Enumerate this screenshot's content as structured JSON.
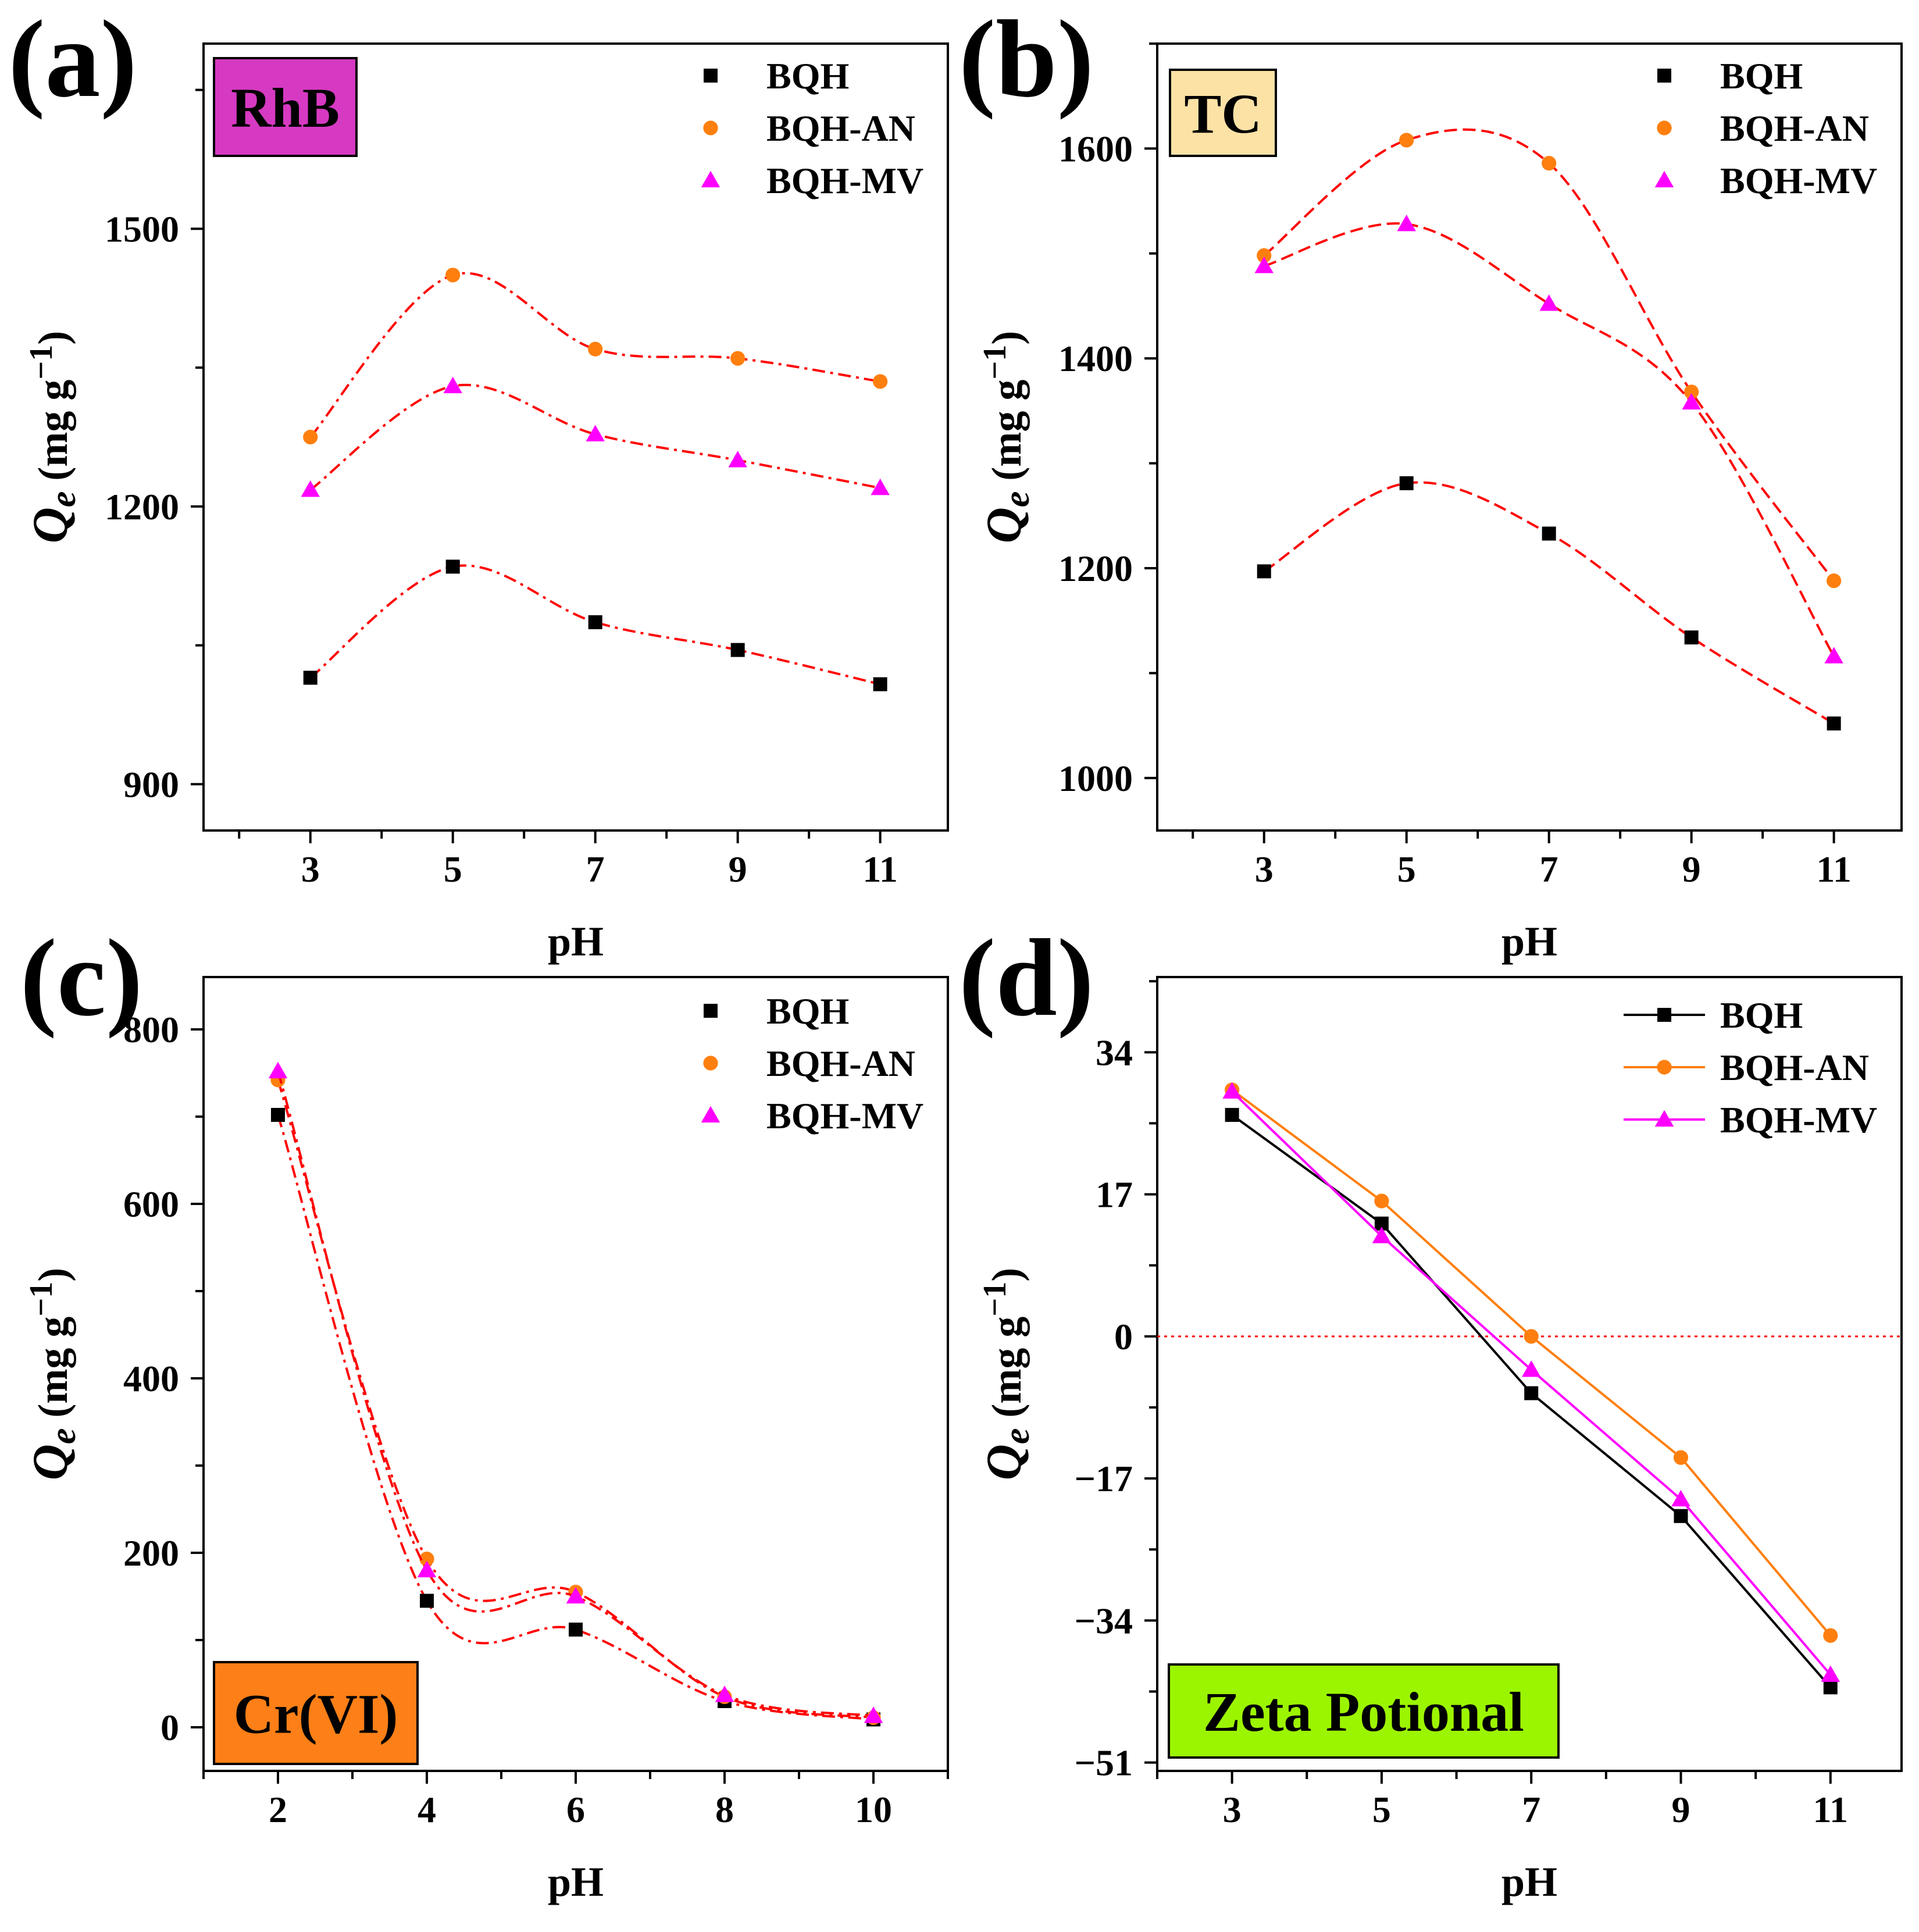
{
  "colors": {
    "bqh": "#000000",
    "bqh_an": "#ff7f0e",
    "bqh_mv": "#ff00ff",
    "fit_line": "#ff0000",
    "zero_line": "#ff0000",
    "rhb_box": "#d63ac2",
    "tc_box": "#fde2a6",
    "cr_box": "#fd7f17",
    "zeta_box": "#9cf500"
  },
  "chart_data": [
    {
      "id": "a",
      "type": "scatter",
      "panel_label": "(a)",
      "analyte_label": "RhB",
      "xlabel": "pH",
      "ylabel": "Qe (mg g−1)",
      "ylabel_main": "Q",
      "ylabel_sub": "e",
      "ylabel_unit": " (mg g",
      "ylabel_sup": "−1",
      "ylabel_close": ")",
      "x": [
        3,
        5,
        7,
        9,
        11
      ],
      "xticks": [
        "3",
        "5",
        "7",
        "9",
        "11"
      ],
      "yticks": [
        "900",
        "1200",
        "1500"
      ],
      "xlim": [
        1.5,
        11.95
      ],
      "ylim": [
        850,
        1700
      ],
      "legend": [
        "BQH",
        "BQH-AN",
        "BQH-MV"
      ],
      "legend_position": "top-right",
      "fit": "smooth dash-dot curve through points",
      "series": [
        {
          "name": "BQH",
          "marker": "square",
          "values": [
            1015,
            1135,
            1075,
            1045,
            1008
          ]
        },
        {
          "name": "BQH-AN",
          "marker": "circle",
          "values": [
            1275,
            1450,
            1370,
            1360,
            1335
          ]
        },
        {
          "name": "BQH-MV",
          "marker": "triangle",
          "values": [
            1218,
            1330,
            1278,
            1250,
            1220
          ]
        }
      ]
    },
    {
      "id": "b",
      "type": "scatter",
      "panel_label": "(b)",
      "analyte_label": "TC",
      "xlabel": "pH",
      "ylabel": "Qe (mg g−1)",
      "ylabel_main": "Q",
      "ylabel_sub": "e",
      "ylabel_unit": " (mg g",
      "ylabel_sup": "−1",
      "ylabel_close": ")",
      "x": [
        3,
        5,
        7,
        9,
        11
      ],
      "xticks": [
        "3",
        "5",
        "7",
        "9",
        "11"
      ],
      "yticks": [
        "1000",
        "1200",
        "1400",
        "1600"
      ],
      "xlim": [
        1.5,
        11.95
      ],
      "ylim": [
        950,
        1700
      ],
      "legend": [
        "BQH",
        "BQH-AN",
        "BQH-MV"
      ],
      "legend_position": "top-right",
      "fit": "smooth dash curve through points",
      "series": [
        {
          "name": "BQH",
          "marker": "square",
          "values": [
            1197,
            1281,
            1233,
            1134,
            1052
          ]
        },
        {
          "name": "BQH-AN",
          "marker": "circle",
          "values": [
            1498,
            1608,
            1586,
            1368,
            1188
          ]
        },
        {
          "name": "BQH-MV",
          "marker": "triangle",
          "values": [
            1488,
            1528,
            1452,
            1358,
            1116
          ]
        }
      ]
    },
    {
      "id": "c",
      "type": "scatter",
      "panel_label": "(c)",
      "analyte_label": "Cr(VI)",
      "xlabel": "pH",
      "ylabel": "Qe (mg g−1)",
      "ylabel_main": "Q",
      "ylabel_sub": "e",
      "ylabel_unit": " (mg g",
      "ylabel_sup": "−1",
      "ylabel_close": ")",
      "x": [
        2,
        4,
        6,
        8,
        10
      ],
      "xticks": [
        "2",
        "4",
        "6",
        "8",
        "10"
      ],
      "yticks": [
        "0",
        "200",
        "400",
        "600",
        "800"
      ],
      "xlim": [
        1,
        11
      ],
      "ylim": [
        -50,
        860
      ],
      "legend": [
        "BQH",
        "BQH-AN",
        "BQH-MV"
      ],
      "legend_position": "top-right",
      "fit": "smooth dash-dot curve through points",
      "series": [
        {
          "name": "BQH",
          "marker": "square",
          "values": [
            702,
            145,
            112,
            30,
            9
          ]
        },
        {
          "name": "BQH-AN",
          "marker": "circle",
          "values": [
            742,
            193,
            155,
            35,
            11
          ]
        },
        {
          "name": "BQH-MV",
          "marker": "triangle",
          "values": [
            752,
            180,
            150,
            37,
            13
          ]
        }
      ]
    },
    {
      "id": "d",
      "type": "line",
      "panel_label": "(d)",
      "analyte_label": "Zeta Potional",
      "xlabel": "pH",
      "ylabel": "Qe (mg g−1)",
      "ylabel_main": "Q",
      "ylabel_sub": "e",
      "ylabel_unit": " (mg g",
      "ylabel_sup": "−1",
      "ylabel_close": ")",
      "x": [
        3,
        5,
        7,
        9,
        11
      ],
      "xticks": [
        "3",
        "5",
        "7",
        "9",
        "11"
      ],
      "yticks": [
        "−51",
        "−34",
        "−17",
        "0",
        "17",
        "34"
      ],
      "yticks_values": [
        -51,
        -34,
        -17,
        0,
        17,
        34
      ],
      "xlim": [
        2,
        11.95
      ],
      "ylim": [
        -52,
        43
      ],
      "reference_line_y": 0,
      "legend": [
        "BQH",
        "BQH-AN",
        "BQH-MV"
      ],
      "legend_position": "top-right",
      "series": [
        {
          "name": "BQH",
          "marker": "square",
          "values": [
            26.5,
            13.5,
            -6.8,
            -21.5,
            -42
          ]
        },
        {
          "name": "BQH-AN",
          "marker": "circle",
          "values": [
            29.5,
            16.2,
            0,
            -14.5,
            -35.8
          ]
        },
        {
          "name": "BQH-MV",
          "marker": "triangle",
          "values": [
            29.3,
            12,
            -4,
            -19.5,
            -40.5
          ]
        }
      ]
    }
  ]
}
